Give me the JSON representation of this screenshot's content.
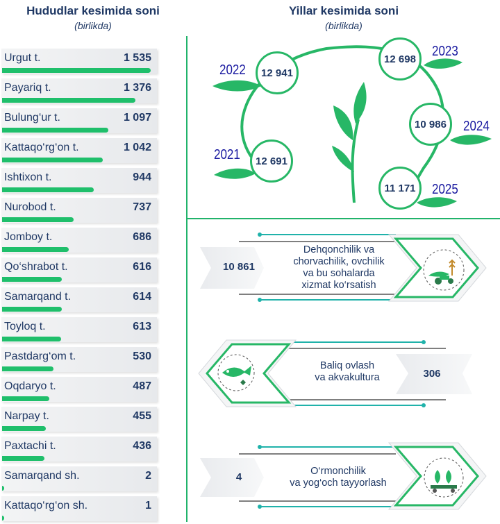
{
  "left_panel": {
    "title": "Hududlar kesimida soni",
    "subtitle": "(birlikda)"
  },
  "right_panel": {
    "title": "Yillar kesimida soni",
    "subtitle": "(birlikda)"
  },
  "chart_data": [
    {
      "type": "bar",
      "title": "Hududlar kesimida soni",
      "subtitle": "(birlikda)",
      "categories": [
        "Urgut t.",
        "Payariq t.",
        "Bulung‘ur t.",
        "Kattaqo‘rg‘on t.",
        "Ishtixon t.",
        "Nurobod t.",
        "Jomboy t.",
        "Qo‘shrabot t.",
        "Samarqand t.",
        "Toyloq t.",
        "Pastdarg‘om t.",
        "Oqdaryo t.",
        "Narpay t.",
        "Paxtachi t.",
        "Samarqand sh.",
        "Kattaqo‘rg‘on sh."
      ],
      "values": [
        1535,
        1376,
        1097,
        1042,
        944,
        737,
        686,
        616,
        614,
        613,
        530,
        487,
        455,
        436,
        2,
        1
      ],
      "value_labels": [
        "1 535",
        "1 376",
        "1 097",
        "1 042",
        "944",
        "737",
        "686",
        "616",
        "614",
        "613",
        "530",
        "487",
        "455",
        "436",
        "2",
        "1"
      ],
      "orientation": "horizontal"
    },
    {
      "type": "bar",
      "title": "Yillar kesimida soni",
      "subtitle": "(birlikda)",
      "categories": [
        "2021",
        "2022",
        "2023",
        "2024",
        "2025"
      ],
      "values": [
        12691,
        12941,
        12698,
        10986,
        11171
      ],
      "value_labels": [
        "12 691",
        "12 941",
        "12 698",
        "10 986",
        "11 171"
      ]
    },
    {
      "type": "table",
      "rows": [
        {
          "label_lines": [
            "Dehqonchilik va",
            "chorvachilik, ovchilik",
            "va bu sohalarda",
            "xizmat ko‘rsatish"
          ],
          "value": 10861,
          "value_label": "10 861",
          "icon": "agriculture-icon"
        },
        {
          "label_lines": [
            "Baliq ovlash",
            "va akvakultura"
          ],
          "value": 306,
          "value_label": "306",
          "icon": "fish-icon"
        },
        {
          "label_lines": [
            "O‘rmonchilik",
            "va yog‘och tayyorlash"
          ],
          "value": 4,
          "value_label": "4",
          "icon": "forestry-icon"
        }
      ]
    }
  ],
  "colors": {
    "bar": "#1fbf6b",
    "text": "#1f3864",
    "year_label": "#1a1aa0",
    "accent": "#21b36b"
  }
}
